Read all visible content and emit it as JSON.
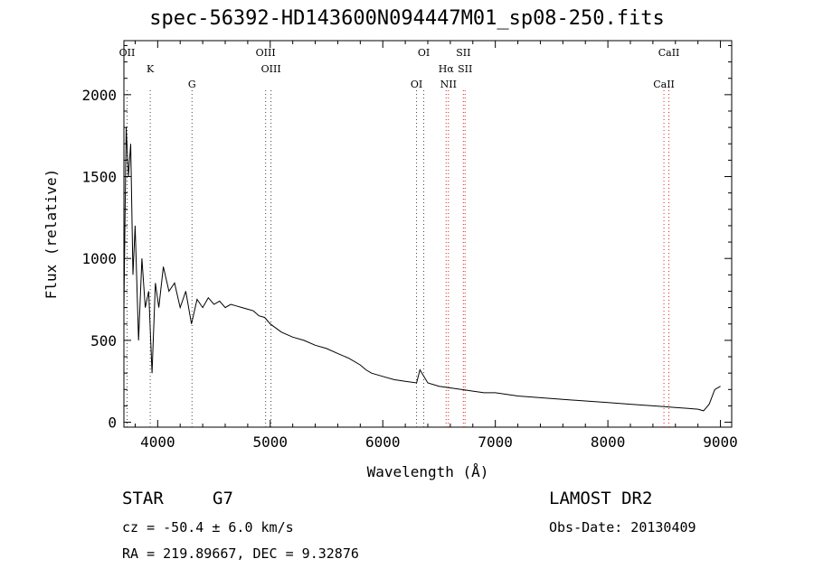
{
  "chart_data": {
    "type": "line",
    "title": "spec-56392-HD143600N094447M01_sp08-250.fits",
    "xlabel": "Wavelength (Å)",
    "ylabel": "Flux (relative)",
    "xlim": [
      3700,
      9100
    ],
    "ylim": [
      -30,
      2330
    ],
    "x_ticks": [
      4000,
      5000,
      6000,
      7000,
      8000,
      9000
    ],
    "y_ticks": [
      0,
      500,
      1000,
      1500,
      2000
    ],
    "grid": false,
    "series": [
      {
        "x": [
          3700,
          3720,
          3740,
          3760,
          3780,
          3800,
          3830,
          3860,
          3890,
          3920,
          3950,
          3980,
          4010,
          4050,
          4100,
          4150,
          4200,
          4250,
          4300,
          4350,
          4400,
          4450,
          4500,
          4550,
          4600,
          4650,
          4700,
          4750,
          4800,
          4850,
          4900,
          4950,
          5000,
          5100,
          5200,
          5300,
          5400,
          5500,
          5600,
          5700,
          5800,
          5850,
          5900,
          6000,
          6100,
          6200,
          6300,
          6330,
          6400,
          6500,
          6600,
          6700,
          6800,
          6900,
          7000,
          7200,
          7400,
          7600,
          7800,
          8000,
          8200,
          8400,
          8500,
          8600,
          8700,
          8800,
          8850,
          8900,
          8950,
          9000
        ],
        "y": [
          700,
          1800,
          1500,
          1700,
          900,
          1200,
          500,
          1000,
          700,
          800,
          300,
          850,
          700,
          950,
          800,
          850,
          700,
          800,
          600,
          750,
          700,
          760,
          720,
          740,
          700,
          720,
          710,
          700,
          690,
          680,
          650,
          640,
          600,
          550,
          520,
          500,
          470,
          450,
          420,
          390,
          350,
          320,
          300,
          280,
          260,
          250,
          240,
          320,
          240,
          220,
          210,
          200,
          190,
          180,
          180,
          160,
          150,
          140,
          130,
          120,
          110,
          100,
          95,
          90,
          85,
          80,
          70,
          110,
          200,
          220
        ]
      }
    ],
    "line_annotations": [
      {
        "label": "OII",
        "x": 3728
      },
      {
        "label": "K",
        "x": 3934
      },
      {
        "label": "G",
        "x": 4305
      },
      {
        "label": "OIII",
        "x": 4959
      },
      {
        "label": "OIII",
        "x": 5007
      },
      {
        "label": "OI",
        "x": 6300
      },
      {
        "label": "OI",
        "x": 6364
      },
      {
        "label": "Hα",
        "x": 6563
      },
      {
        "label": "NII",
        "x": 6583
      },
      {
        "label": "SII",
        "x": 6716
      },
      {
        "label": "SII",
        "x": 6731
      },
      {
        "label": "CaII",
        "x": 8498
      },
      {
        "label": "CaII",
        "x": 8542
      }
    ]
  },
  "info": {
    "class_label": "STAR",
    "subclass": "G7",
    "survey": "LAMOST DR2",
    "redshift_line": "cz = -50.4 ± 6.0 km/s",
    "obs_date": "Obs-Date: 20130409",
    "coords": "RA = 219.89667, DEC =   9.32876"
  }
}
